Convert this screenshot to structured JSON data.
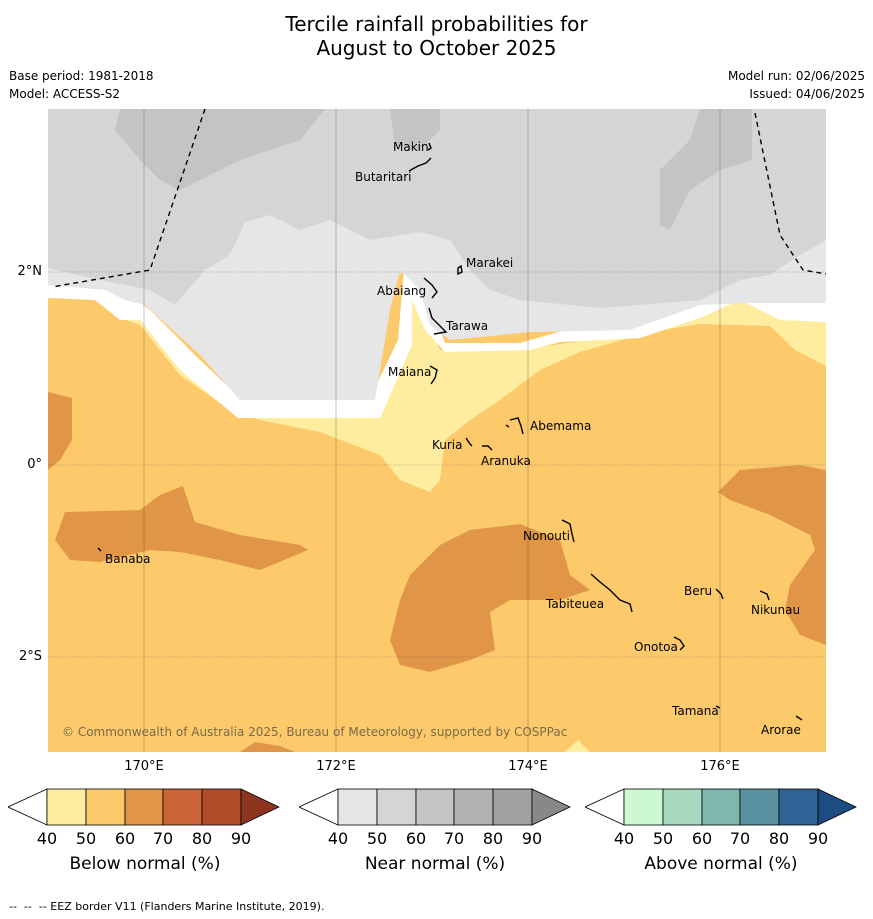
{
  "title_line1": "Tercile rainfall probabilities for",
  "title_line2": "August to October 2025",
  "base_period": "Base period: 1981-2018",
  "model": "Model: ACCESS-S2",
  "model_run": "Model run: 02/06/2025",
  "issued": "Issued: 04/06/2025",
  "copyright": "© Commonwealth of Australia 2025, Bureau of Meteorology, supported by COSPPac",
  "longitude_labels": [
    "170°E",
    "172°E",
    "174°E",
    "176°E"
  ],
  "latitude_labels": [
    "2°N",
    "0°",
    "2°S"
  ],
  "places": [
    "Makin",
    "Butaritari",
    "Marakei",
    "Abaiang",
    "Tarawa",
    "Maiana",
    "Abemama",
    "Kuria",
    "Aranuka",
    "Nonouti",
    "Banaba",
    "Beru",
    "Tabiteuea",
    "Nikunau",
    "Onotoa",
    "Tamana",
    "Arorae"
  ],
  "colorbars": {
    "below": {
      "title": "Below normal (%)",
      "ticks": [
        "40",
        "50",
        "60",
        "70",
        "80",
        "90"
      ],
      "colors": [
        "#ffffff",
        "#feec9f",
        "#fdca6b",
        "#e19546",
        "#cc6437",
        "#b04d2a",
        "#8e3521"
      ]
    },
    "near": {
      "title": "Near normal (%)",
      "ticks": [
        "40",
        "50",
        "60",
        "70",
        "80",
        "90"
      ],
      "colors": [
        "#ffffff",
        "#e6e6e6",
        "#d5d5d5",
        "#c4c4c4",
        "#b2b2b2",
        "#a1a1a1",
        "#888888"
      ]
    },
    "above": {
      "title": "Above normal (%)",
      "ticks": [
        "40",
        "50",
        "60",
        "70",
        "80",
        "90"
      ],
      "colors": [
        "#ffffff",
        "#ccf9d0",
        "#a6d9bd",
        "#7fb6b0",
        "#5a92a1",
        "#2f6496",
        "#1d4c82"
      ]
    }
  },
  "footnote": "--  --  -- EEZ border V11 (Flanders Marine Institute, 2019)."
}
